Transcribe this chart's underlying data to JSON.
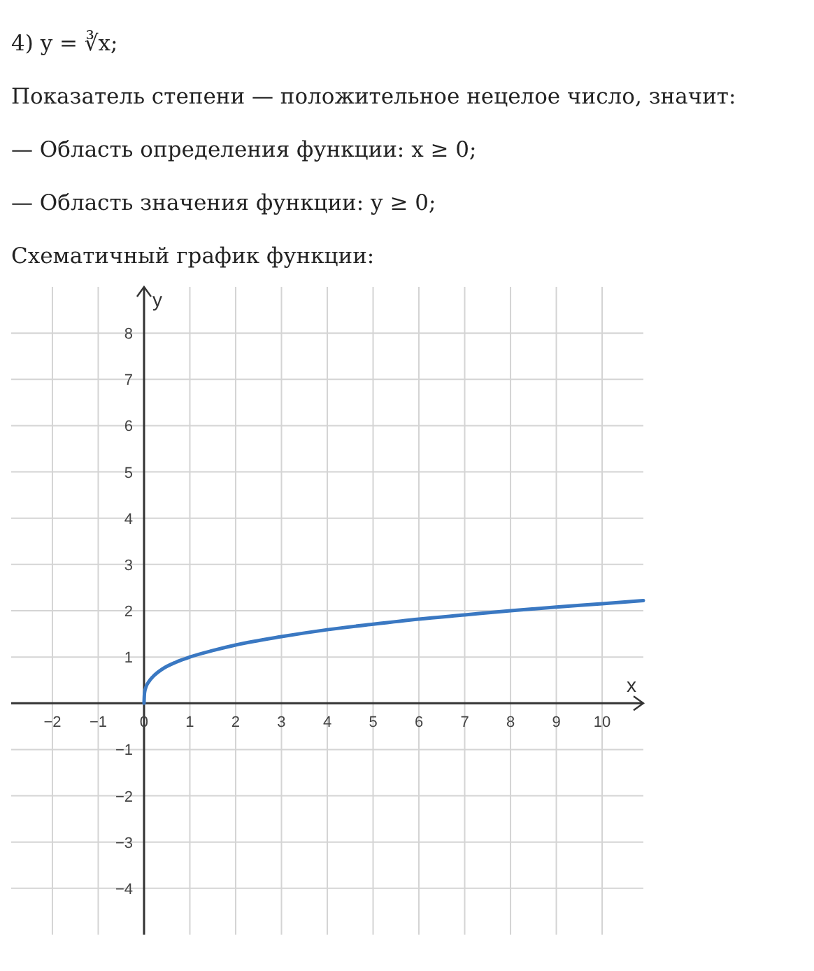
{
  "chart_data": {
    "type": "line",
    "title": "4) y = ∛x;",
    "subtitle": "Показатель степени — положительное нецелое число, значит:",
    "annotations": [
      "— Область определения функции:  x ≥ 0;",
      "— Область значения функции:  y ≥ 0;",
      "Схематичный график функции:"
    ],
    "xlabel": "x",
    "ylabel": "y",
    "x": [
      0,
      0.01,
      0.05,
      0.1,
      0.2,
      0.4,
      0.7,
      1,
      1.5,
      2,
      3,
      4,
      5,
      6,
      7,
      8,
      9,
      10,
      10.9
    ],
    "series": [
      {
        "color": "#3a78c2",
        "values": [
          0,
          0.22,
          0.37,
          0.46,
          0.58,
          0.74,
          0.89,
          1,
          1.14,
          1.26,
          1.44,
          1.59,
          1.71,
          1.82,
          1.91,
          2,
          2.08,
          2.15,
          2.22
        ]
      }
    ],
    "xlim": [
      -2.9,
      10.9
    ],
    "ylim": [
      -5,
      9
    ],
    "xticks": [
      {
        "value": -2,
        "label": "−2"
      },
      {
        "value": -1,
        "label": "−1"
      },
      0,
      1,
      2,
      3,
      4,
      5,
      6,
      7,
      8,
      9,
      10
    ],
    "yticks": [
      {
        "value": -4,
        "label": "−4"
      },
      {
        "value": -3,
        "label": "−3"
      },
      {
        "value": -2,
        "label": "−2"
      },
      {
        "value": -1,
        "label": "−1"
      },
      1,
      2,
      3,
      4,
      5,
      6,
      7,
      8
    ],
    "grid": true,
    "line_style": "solid"
  }
}
